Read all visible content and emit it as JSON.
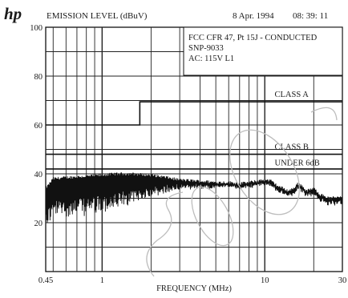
{
  "header": {
    "brand_logo_text": "hp",
    "ylabel": "EMISSION LEVEL (dBuV)",
    "date": "8 Apr. 1994",
    "time": "08: 39: 11"
  },
  "info_box": {
    "line1": "FCC CFR 47, Pt 15J - CONDUCTED",
    "line2": "SNP-9033",
    "line3": "AC:  115V   L1"
  },
  "watermark_text": "sic",
  "chart_data": {
    "type": "line",
    "xscale": "log",
    "xlabel": "FREQUENCY (MHz)",
    "ylabel": "EMISSION LEVEL (dBuV)",
    "xlim": [
      0.45,
      30
    ],
    "ylim": [
      0,
      100
    ],
    "x_tick_labels": [
      {
        "value": 0.45,
        "label": "0.45"
      },
      {
        "value": 1,
        "label": "1"
      },
      {
        "value": 10,
        "label": "10"
      },
      {
        "value": 30,
        "label": "30"
      }
    ],
    "y_ticks": [
      {
        "value": 20,
        "label": "20"
      },
      {
        "value": 40,
        "label": "40"
      },
      {
        "value": 60,
        "label": "60"
      },
      {
        "value": 80,
        "label": "80"
      },
      {
        "value": 100,
        "label": "100"
      }
    ],
    "grid": true,
    "limit_lines": [
      {
        "label": "CLASS A",
        "segments": [
          [
            0.45,
            1.705,
            60
          ],
          [
            1.705,
            30,
            69.5
          ]
        ],
        "label_at": [
          11.5,
          71.5
        ]
      },
      {
        "label": "CLASS B",
        "segments": [
          [
            0.45,
            30,
            48
          ]
        ],
        "label_at": [
          11.5,
          50
        ]
      },
      {
        "label": "UNDER 6dB",
        "segments": [
          [
            0.45,
            30,
            42
          ]
        ],
        "label_at": [
          11.5,
          43.5
        ]
      }
    ],
    "series": [
      {
        "points": [
          [
            0.45,
            34
          ],
          [
            0.5,
            38
          ],
          [
            0.6,
            38.5
          ],
          [
            0.8,
            39
          ],
          [
            1.0,
            39.5
          ],
          [
            1.2,
            40
          ],
          [
            1.5,
            40
          ],
          [
            2.0,
            39.5
          ],
          [
            2.5,
            38.5
          ],
          [
            3.0,
            37.5
          ],
          [
            4.0,
            37
          ],
          [
            5.0,
            36.5
          ],
          [
            6.0,
            36.5
          ],
          [
            7.0,
            36
          ],
          [
            8.0,
            36.5
          ],
          [
            9.0,
            37
          ],
          [
            10.0,
            37.5
          ],
          [
            11.0,
            37
          ],
          [
            12.0,
            35
          ],
          [
            13.0,
            34
          ],
          [
            14.0,
            33
          ],
          [
            15.0,
            34
          ],
          [
            16.0,
            36
          ],
          [
            17.0,
            35
          ],
          [
            18.0,
            33
          ],
          [
            20.0,
            34
          ],
          [
            22.0,
            31.5
          ],
          [
            25.0,
            30
          ],
          [
            28.0,
            30.5
          ],
          [
            30.0,
            31
          ]
        ],
        "noise_amplitude": [
          [
            0.45,
            16
          ],
          [
            0.8,
            16
          ],
          [
            1.2,
            15
          ],
          [
            2.0,
            9
          ],
          [
            3.0,
            4
          ],
          [
            5.0,
            2
          ],
          [
            10.0,
            2
          ],
          [
            30.0,
            3
          ]
        ]
      }
    ]
  }
}
